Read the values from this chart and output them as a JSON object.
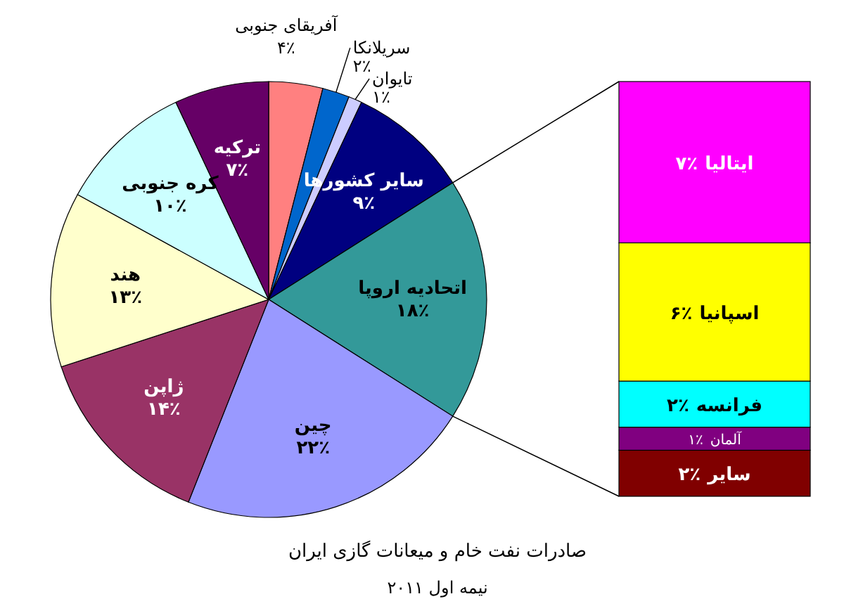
{
  "chart_data": [
    {
      "type": "pie",
      "title": "صادرات نفت خام و میعانات گازی ایران",
      "subtitle": "نیمه اول ۲۰۱۱",
      "categories": [
        "آفریقای جنوبی",
        "سریلانکا",
        "تایوان",
        "سایر کشورها",
        "اتحادیه اروپا",
        "چین",
        "ژاپن",
        "هند",
        "کره جنوبی",
        "ترکیه"
      ],
      "values": [
        4,
        2,
        1,
        9,
        18,
        22,
        14,
        13,
        10,
        7
      ],
      "value_labels": [
        "۴٪",
        "۲٪",
        "۱٪",
        "۹٪",
        "۱۸٪",
        "۲۲٪",
        "۱۴٪",
        "۱۳٪",
        "۱۰٪",
        "۷٪"
      ],
      "colors": [
        "#ff8080",
        "#0066cc",
        "#ccccff",
        "#000080",
        "#339999",
        "#9999ff",
        "#993366",
        "#ffffcc",
        "#ccffff",
        "#660066"
      ]
    },
    {
      "type": "bar",
      "stacked": true,
      "data_labels": true,
      "categories": [
        null
      ],
      "series": [
        {
          "name": "سایر",
          "color": "#800000",
          "values": [
            2
          ],
          "value_labels": [
            "۲٪"
          ]
        },
        {
          "name": "آلمان",
          "color": "#800080",
          "values": [
            1
          ],
          "value_labels": [
            "۱٪"
          ]
        },
        {
          "name": "فرانسه",
          "color": "#00ffff",
          "values": [
            2
          ],
          "value_labels": [
            "۲٪"
          ]
        },
        {
          "name": "اسپانیا",
          "color": "#ffff00",
          "values": [
            6
          ],
          "value_labels": [
            "۶٪"
          ]
        },
        {
          "name": "ایتالیا",
          "color": "#ff00ff",
          "values": [
            7
          ],
          "value_labels": [
            "۷٪"
          ]
        }
      ]
    }
  ]
}
